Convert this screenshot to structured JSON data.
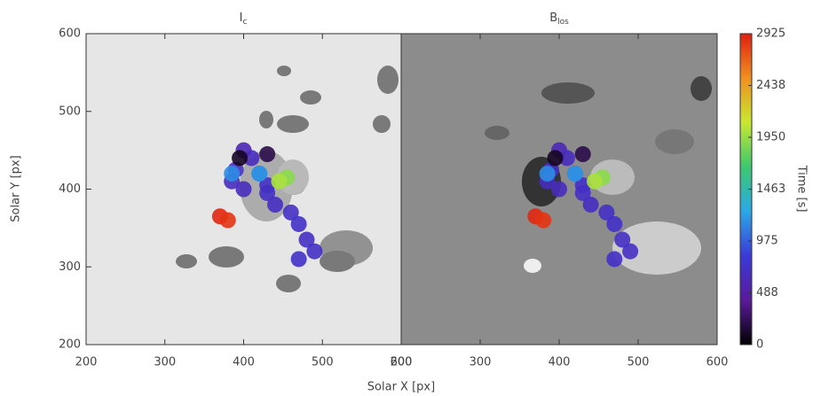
{
  "chart_data": [
    {
      "type": "image",
      "title": "I",
      "title_sub": "c",
      "background": "#e6e6e6",
      "xlim": [
        200,
        600
      ],
      "xticks": [
        200,
        300,
        400,
        500,
        600
      ],
      "ylim": [
        200,
        600
      ],
      "yticks": [
        200,
        300,
        400,
        500,
        600
      ],
      "xlabel": "Solar X [px]",
      "ylabel": "Solar Y [px]"
    },
    {
      "type": "image",
      "title": "B",
      "title_sub": "los",
      "background": "#8c8c8c",
      "xlim": [
        200,
        600
      ],
      "xticks": [
        200,
        300,
        400,
        500,
        600
      ],
      "ylim": [
        200,
        600
      ]
    },
    {
      "type": "features",
      "x": [
        400,
        410,
        390,
        420,
        400,
        430,
        440,
        460,
        470,
        480,
        490,
        470,
        430,
        385,
        395,
        385,
        420,
        455,
        445,
        370,
        380,
        430
      ],
      "y": [
        450,
        440,
        425,
        420,
        400,
        395,
        380,
        370,
        355,
        335,
        320,
        310,
        405,
        410,
        440,
        420,
        420,
        415,
        410,
        365,
        360,
        445
      ],
      "t": [
        600,
        650,
        700,
        700,
        650,
        700,
        680,
        700,
        720,
        700,
        700,
        720,
        700,
        650,
        100,
        1150,
        1200,
        1900,
        2000,
        2900,
        2850,
        200
      ]
    },
    {
      "type": "colorbar",
      "label": "Time [s]",
      "zlim": [
        0,
        2925
      ],
      "zticks": [
        0,
        488,
        975,
        1463,
        1950,
        2438,
        2925
      ],
      "colors": [
        "#000000",
        "#5a1a9a",
        "#3a3ad8",
        "#2aa8e8",
        "#3cc870",
        "#c8e830",
        "#f09020",
        "#e02010"
      ]
    }
  ]
}
